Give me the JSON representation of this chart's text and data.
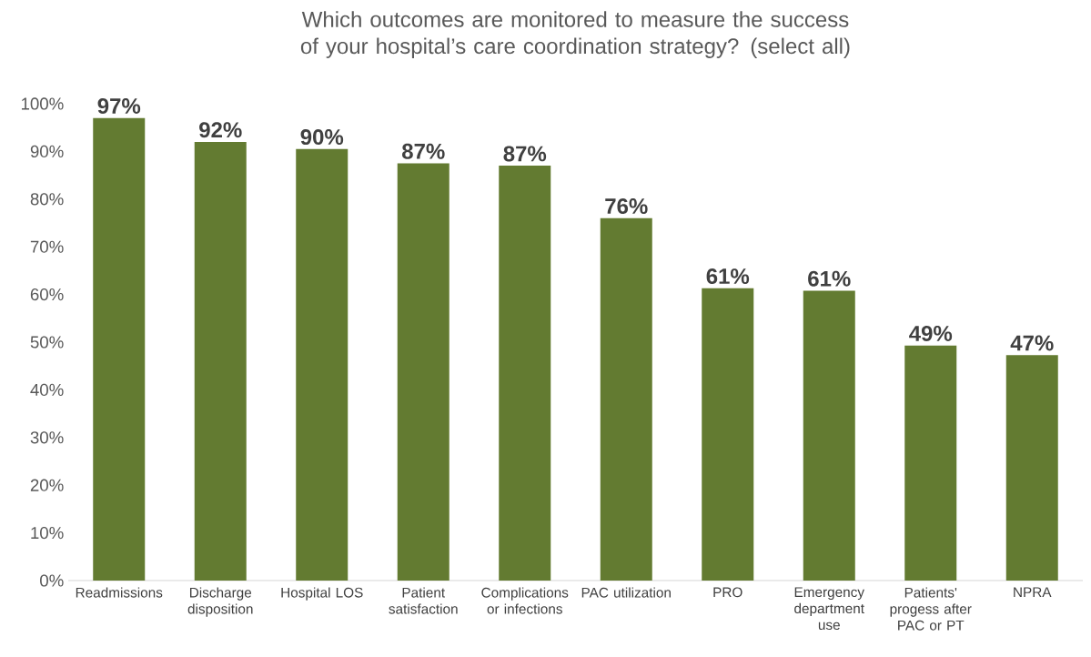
{
  "chart_data": {
    "type": "bar",
    "title": "Which outcomes are monitored to measure the success of your hospital’s care coordination strategy? (select all)",
    "categories": [
      "Readmissions",
      "Discharge disposition",
      "Hospital LOS",
      "Patient satisfaction",
      "Complications or infections",
      "PAC utilization",
      "PRO",
      "Emergency department use",
      "Patients' progess after PAC or PT",
      "NPRA"
    ],
    "values": [
      97,
      92,
      90.5,
      87.5,
      87,
      76,
      61.3,
      60.8,
      49.3,
      47.3
    ],
    "value_labels": [
      "97%",
      "92%",
      "90%",
      "87%",
      "87%",
      "76%",
      "61%",
      "61%",
      "49%",
      "47%"
    ],
    "color": "#637b31",
    "ylim": [
      0,
      100
    ],
    "yticks": [
      {
        "value": 0,
        "label": "0%"
      },
      {
        "value": 10,
        "label": "10%"
      },
      {
        "value": 20,
        "label": "20%"
      },
      {
        "value": 30,
        "label": "30%"
      },
      {
        "value": 40,
        "label": "40%"
      },
      {
        "value": 50,
        "label": "50%"
      },
      {
        "value": 60,
        "label": "60%"
      },
      {
        "value": 70,
        "label": "70%"
      },
      {
        "value": 80,
        "label": "80%"
      },
      {
        "value": 90,
        "label": "90%"
      },
      {
        "value": 100,
        "label": "100%"
      }
    ]
  }
}
